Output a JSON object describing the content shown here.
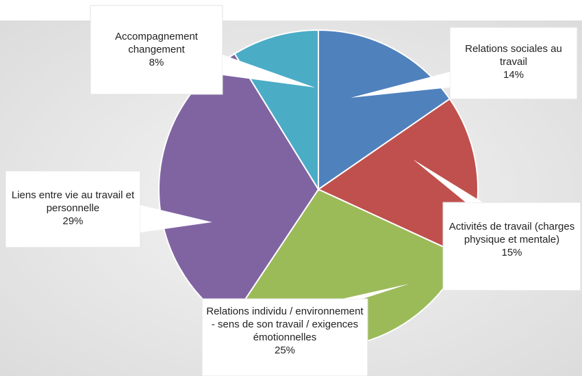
{
  "chart_data": {
    "type": "pie",
    "categories": [
      "Relations sociales au travail",
      "Activités de travail (charges physique et mentale)",
      "Relations individu / environnement - sens de son travail / exigences émotionnelles",
      "Liens entre vie au travail et personnelle",
      "Accompagnement changement"
    ],
    "values": [
      14,
      15,
      25,
      29,
      8
    ],
    "value_labels": [
      "14%",
      "15%",
      "25%",
      "29%",
      "8%"
    ],
    "colors": [
      "#4f81bd",
      "#c0504d",
      "#9bbb59",
      "#8064a2",
      "#4bacc6"
    ]
  }
}
